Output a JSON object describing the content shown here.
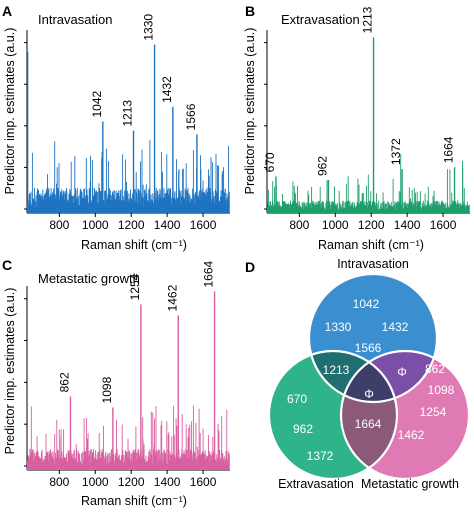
{
  "chart_data": [
    {
      "panel": "A",
      "type": "bar",
      "title": "Intravasation",
      "xlabel": "Raman shift (cm⁻¹)",
      "ylabel": "Predictor imp. estimates (a.u.)",
      "xlim": [
        620,
        1750
      ],
      "ylim": [
        0,
        1
      ],
      "xticks": [
        800,
        1000,
        1200,
        1400,
        1600
      ],
      "color": "#1f74c1",
      "peaks": [
        {
          "x": 1042,
          "label": "1042",
          "value": 0.5
        },
        {
          "x": 1213,
          "label": "1213",
          "value": 0.45
        },
        {
          "x": 1330,
          "label": "1330",
          "value": 0.92
        },
        {
          "x": 1432,
          "label": "1432",
          "value": 0.58
        },
        {
          "x": 1566,
          "label": "1566",
          "value": 0.43
        }
      ],
      "background_level": 0.12,
      "start_spike": 0.88
    },
    {
      "panel": "B",
      "type": "bar",
      "title": "Extravasation",
      "xlabel": "Raman shift (cm⁻¹)",
      "ylabel": "Predictor imp. estimates (a.u.)",
      "xlim": [
        620,
        1750
      ],
      "ylim": [
        0,
        1
      ],
      "xticks": [
        800,
        1000,
        1200,
        1400,
        1600
      ],
      "color": "#1e9e6c",
      "peaks": [
        {
          "x": 670,
          "label": "670",
          "value": 0.2
        },
        {
          "x": 962,
          "label": "962",
          "value": 0.18
        },
        {
          "x": 1213,
          "label": "1213",
          "value": 0.96
        },
        {
          "x": 1372,
          "label": "1372",
          "value": 0.24
        },
        {
          "x": 1664,
          "label": "1664",
          "value": 0.25
        }
      ],
      "background_level": 0.06,
      "start_spike": 0.0
    },
    {
      "panel": "C",
      "type": "bar",
      "title": "Metastatic growth",
      "xlabel": "Raman shift (cm⁻¹)",
      "ylabel": "Predictor imp. estimates (a.u.)",
      "xlim": [
        620,
        1750
      ],
      "ylim": [
        0,
        1
      ],
      "xticks": [
        800,
        1000,
        1200,
        1400,
        1600
      ],
      "color": "#d85fa0",
      "peaks": [
        {
          "x": 862,
          "label": "862",
          "value": 0.4
        },
        {
          "x": 1098,
          "label": "1098",
          "value": 0.34
        },
        {
          "x": 1254,
          "label": "1254",
          "value": 0.9
        },
        {
          "x": 1462,
          "label": "1462",
          "value": 0.84
        },
        {
          "x": 1664,
          "label": "1664",
          "value": 0.97
        }
      ],
      "background_level": 0.1,
      "start_spike": 0.0
    },
    {
      "panel": "D",
      "type": "venn",
      "sets": [
        {
          "name": "Intravasation",
          "color": "#3a8fd0",
          "exclusive": [
            "1042",
            "1330",
            "1432",
            "1566"
          ]
        },
        {
          "name": "Extravasation",
          "color": "#2fb38a",
          "exclusive": [
            "670",
            "962",
            "1372"
          ]
        },
        {
          "name": "Metastatic growth",
          "color": "#df7ab5",
          "exclusive": [
            "862",
            "1098",
            "1254",
            "1462"
          ]
        }
      ],
      "intersections": {
        "intravasation_extravasation": "1213",
        "intravasation_metastatic": "Φ",
        "extravasation_metastatic": "1664",
        "all_three": "Φ"
      },
      "intersection_colors": {
        "intravasation_extravasation": "#1f6f70",
        "intravasation_metastatic": "#7a4fa8",
        "extravasation_metastatic": "#8a5a78",
        "all_three": "#3d3f6a"
      }
    }
  ]
}
